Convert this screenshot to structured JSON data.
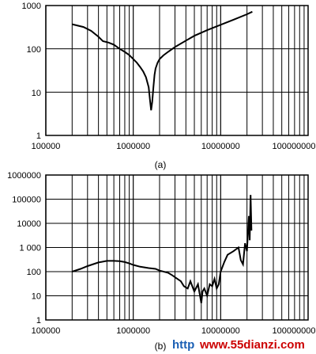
{
  "colors": {
    "grid": "#000000",
    "line": "#000000",
    "watermark_red": "#cc0000",
    "watermark_blue": "#1a5fb4"
  },
  "watermark": {
    "prefix": "http",
    "site": "www.55dianzi.com"
  },
  "chart_data": [
    {
      "type": "line",
      "panel_label": "(a)",
      "xscale": "log",
      "yscale": "log",
      "xlim": [
        100000,
        100000000
      ],
      "ylim": [
        1,
        1000
      ],
      "grid": true,
      "xticks": [
        "100000",
        "1000000",
        "10000000",
        "100000000"
      ],
      "yticks": [
        "1",
        "10",
        "100",
        "1000"
      ],
      "series": [
        {
          "x": [
            200000,
            270000,
            330000,
            400000,
            450000,
            520000,
            600000,
            700000,
            800000,
            900000,
            1000000,
            1100000,
            1200000,
            1300000,
            1400000,
            1500000,
            1550000,
            1600000,
            1650000,
            1700000,
            1750000,
            1800000,
            1900000,
            2000000,
            2200000,
            2500000,
            3000000,
            4000000,
            5000000,
            7000000,
            10000000,
            14000000,
            20000000,
            23000000
          ],
          "y": [
            370,
            320,
            260,
            190,
            150,
            140,
            125,
            100,
            85,
            72,
            58,
            48,
            38,
            30,
            22,
            13,
            7,
            3.8,
            6,
            13,
            25,
            35,
            48,
            58,
            70,
            85,
            110,
            155,
            200,
            270,
            360,
            470,
            630,
            720
          ]
        }
      ]
    },
    {
      "type": "line",
      "panel_label": "(b)",
      "xscale": "log",
      "yscale": "log",
      "xlim": [
        100000,
        100000000
      ],
      "ylim": [
        1,
        1000000
      ],
      "grid": true,
      "xticks": [
        "100000",
        "1000000",
        "10000000",
        "100000000"
      ],
      "yticks": [
        "1",
        "10",
        "100",
        "1 000",
        "10000",
        "100000",
        "1000000"
      ],
      "series": [
        {
          "x": [
            200000,
            250000,
            300000,
            400000,
            500000,
            600000,
            700000,
            800000,
            900000,
            1000000,
            1200000,
            1500000,
            1800000,
            2000000,
            2500000,
            2800000,
            3200000,
            3500000,
            3800000,
            4200000,
            4500000,
            5000000,
            5500000,
            5800000,
            6000000,
            6200000,
            6500000,
            7000000,
            7500000,
            8000000,
            8500000,
            9000000,
            9500000,
            10000000,
            11000000,
            12000000,
            14000000,
            16000000,
            17000000,
            18000000,
            19000000,
            20000000,
            21000000,
            21500000,
            22000000,
            22500000
          ],
          "y": [
            100,
            130,
            170,
            240,
            280,
            280,
            270,
            250,
            220,
            190,
            160,
            140,
            130,
            110,
            90,
            70,
            50,
            40,
            25,
            20,
            40,
            15,
            30,
            10,
            5,
            15,
            20,
            10,
            30,
            25,
            50,
            20,
            30,
            100,
            250,
            500,
            700,
            1000,
            300,
            200,
            1500,
            700,
            20000,
            2000,
            150000,
            5000
          ]
        }
      ]
    }
  ]
}
